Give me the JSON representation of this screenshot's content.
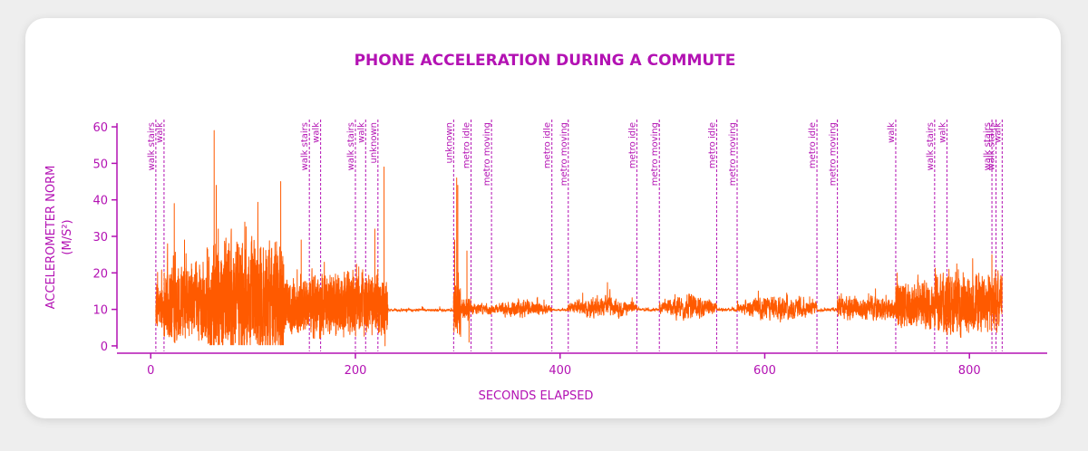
{
  "chart_data": {
    "type": "line",
    "title": "PHONE ACCELERATION DURING A COMMUTE",
    "xlabel": "SECONDS ELAPSED",
    "ylabel": "ACCELEROMETER NORM",
    "ylabel_unit": "(M/S²)",
    "xlim": [
      -33,
      876
    ],
    "ylim": [
      -2,
      62
    ],
    "xticks": [
      0,
      200,
      400,
      600,
      800
    ],
    "yticks": [
      0,
      10,
      20,
      30,
      40,
      50,
      60
    ],
    "grid": false,
    "colors": {
      "accent": "#b312b3",
      "line": "#ff5a00"
    },
    "segments": [
      {
        "t0": 5,
        "t1": 13,
        "base": 10.5,
        "amp": 4,
        "smooth": 0.2
      },
      {
        "t0": 13,
        "t1": 55,
        "base": 11.5,
        "amp": 7,
        "smooth": 0.3
      },
      {
        "t0": 55,
        "t1": 130,
        "base": 13,
        "amp": 11,
        "smooth": 0.3
      },
      {
        "t0": 130,
        "t1": 155,
        "base": 11,
        "amp": 5,
        "smooth": 0.3
      },
      {
        "t0": 155,
        "t1": 222,
        "base": 11.5,
        "amp": 6,
        "smooth": 0.3
      },
      {
        "t0": 222,
        "t1": 232,
        "base": 10,
        "amp": 5,
        "smooth": 0.2
      },
      {
        "t0": 232,
        "t1": 296,
        "base": 9.8,
        "amp": 0.5,
        "smooth": 0.8
      },
      {
        "t0": 296,
        "t1": 303,
        "base": 9.8,
        "amp": 5,
        "smooth": 0.3
      },
      {
        "t0": 303,
        "t1": 313,
        "base": 10,
        "amp": 2.5,
        "smooth": 0.5
      },
      {
        "t0": 313,
        "t1": 333,
        "base": 10,
        "amp": 1.2,
        "smooth": 0.6
      },
      {
        "t0": 333,
        "t1": 392,
        "base": 10.2,
        "amp": 2,
        "smooth": 0.6,
        "env": true
      },
      {
        "t0": 392,
        "t1": 408,
        "base": 9.8,
        "amp": 0.4,
        "smooth": 0.8
      },
      {
        "t0": 408,
        "t1": 475,
        "base": 10.5,
        "amp": 2.5,
        "smooth": 0.6,
        "env": true
      },
      {
        "t0": 475,
        "t1": 497,
        "base": 9.9,
        "amp": 0.5,
        "smooth": 0.8
      },
      {
        "t0": 497,
        "t1": 553,
        "base": 10.5,
        "amp": 3,
        "smooth": 0.6,
        "env": true
      },
      {
        "t0": 553,
        "t1": 573,
        "base": 9.9,
        "amp": 0.5,
        "smooth": 0.8
      },
      {
        "t0": 573,
        "t1": 651,
        "base": 10.5,
        "amp": 3,
        "smooth": 0.6,
        "env": true
      },
      {
        "t0": 651,
        "t1": 671,
        "base": 9.9,
        "amp": 0.6,
        "smooth": 0.8
      },
      {
        "t0": 671,
        "t1": 728,
        "base": 10.3,
        "amp": 2.5,
        "smooth": 0.5
      },
      {
        "t0": 728,
        "t1": 766,
        "base": 11,
        "amp": 4.5,
        "smooth": 0.4
      },
      {
        "t0": 766,
        "t1": 832,
        "base": 11.5,
        "amp": 6,
        "smooth": 0.4
      }
    ],
    "spikes": [
      {
        "x": 23,
        "y": 39
      },
      {
        "x": 33,
        "y": 29
      },
      {
        "x": 62,
        "y": 59
      },
      {
        "x": 64,
        "y": 44
      },
      {
        "x": 66,
        "y": 32
      },
      {
        "x": 127,
        "y": 45
      },
      {
        "x": 147,
        "y": 29
      },
      {
        "x": 219,
        "y": 32
      },
      {
        "x": 228,
        "y": 49
      },
      {
        "x": 229,
        "y": 0
      },
      {
        "x": 297,
        "y": 29
      },
      {
        "x": 299,
        "y": 46
      },
      {
        "x": 300,
        "y": 44
      },
      {
        "x": 309,
        "y": 26
      },
      {
        "x": 311,
        "y": 1
      },
      {
        "x": 822,
        "y": 25
      }
    ],
    "annotations": [
      {
        "x": 5,
        "label": "walk stairs"
      },
      {
        "x": 13,
        "label": "walk"
      },
      {
        "x": 155,
        "label": "walk stairs"
      },
      {
        "x": 166,
        "label": "walk"
      },
      {
        "x": 200,
        "label": "walk stairs"
      },
      {
        "x": 210,
        "label": "walk"
      },
      {
        "x": 222,
        "label": "unknown"
      },
      {
        "x": 296,
        "label": "unknown"
      },
      {
        "x": 313,
        "label": "metro idle"
      },
      {
        "x": 333,
        "label": "metro moving"
      },
      {
        "x": 392,
        "label": "metro idle"
      },
      {
        "x": 408,
        "label": "metro moving"
      },
      {
        "x": 475,
        "label": "metro idle"
      },
      {
        "x": 497,
        "label": "metro moving"
      },
      {
        "x": 553,
        "label": "metro idle"
      },
      {
        "x": 573,
        "label": "metro moving"
      },
      {
        "x": 651,
        "label": "metro idle"
      },
      {
        "x": 671,
        "label": "metro moving"
      },
      {
        "x": 728,
        "label": "walk"
      },
      {
        "x": 766,
        "label": "walk stairs"
      },
      {
        "x": 778,
        "label": "walk"
      },
      {
        "x": 822,
        "label": "walk stairs"
      },
      {
        "x": 826,
        "label": "walk stairs"
      },
      {
        "x": 832,
        "label": "walk"
      }
    ]
  }
}
